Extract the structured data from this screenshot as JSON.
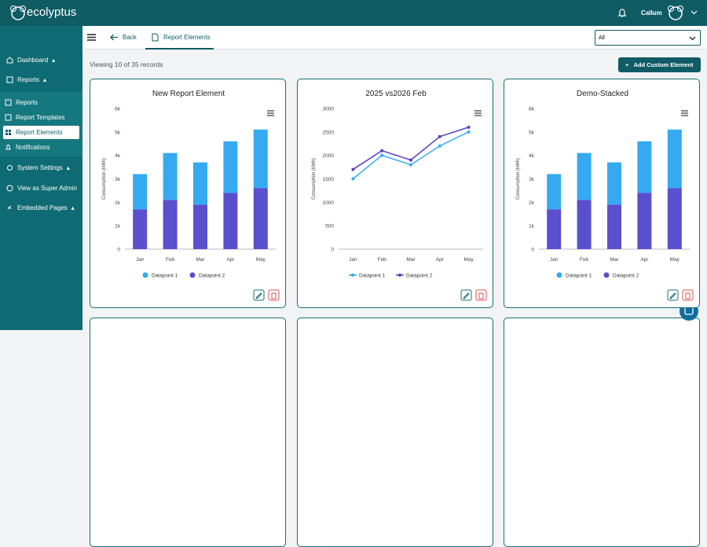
{
  "app": {
    "brand": "ecolyptus",
    "user": "Callum"
  },
  "nav": {
    "items": [
      "Dashboard",
      "Reports"
    ],
    "sub_items": [
      "Reports",
      "Report Templates",
      "Report Elements",
      "Notifications"
    ],
    "more_items": [
      "System Settings",
      "View as Super Admin",
      "Embedded Pages"
    ]
  },
  "toolbar": {
    "back": "Back",
    "tab": "Report Elements",
    "filter": "All"
  },
  "summary": {
    "records": "Viewing 10 of 35 records",
    "add_button": "Add Custom Element"
  },
  "chart_data": [
    {
      "type": "bar",
      "stacked": true,
      "title": "New Report Element",
      "ylabel": "Consumption (kWh)",
      "categories": [
        "Jan",
        "Feb",
        "Mar",
        "Apr",
        "May"
      ],
      "series": [
        {
          "name": "Datapoint 1",
          "color": "#35aaf0",
          "values": [
            1500,
            2000,
            1800,
            2200,
            2500
          ]
        },
        {
          "name": "Datapoint 2",
          "color": "#5a4fcf",
          "values": [
            1700,
            2100,
            1900,
            2400,
            2600
          ]
        }
      ],
      "ylim": [
        0,
        6000
      ],
      "yticks": [
        0,
        {
          "value": 1000,
          "label": "1k"
        },
        {
          "value": 2000,
          "label": "2k"
        },
        {
          "value": 3000,
          "label": "3k"
        },
        {
          "value": 4000,
          "label": "4k"
        },
        {
          "value": 5000,
          "label": "5k"
        },
        {
          "value": 6000,
          "label": "6k"
        }
      ],
      "legend": "bottom"
    },
    {
      "type": "line",
      "title": "2025 vs2026 Feb",
      "ylabel": "Consumption (kWh)",
      "categories": [
        "Jan",
        "Feb",
        "Mar",
        "Apr",
        "May"
      ],
      "series": [
        {
          "name": "Datapoint 1",
          "color": "#35aaf0",
          "values": [
            1500,
            2000,
            1800,
            2200,
            2500
          ]
        },
        {
          "name": "Datapoint 2",
          "color": "#5a3fc0",
          "values": [
            1700,
            2100,
            1900,
            2400,
            2600
          ]
        }
      ],
      "ylim": [
        0,
        3000
      ],
      "yticks": [
        0,
        500,
        1000,
        1500,
        2000,
        2500,
        3000
      ],
      "legend": "bottom"
    },
    {
      "type": "bar",
      "stacked": true,
      "title": "Demo-Stacked",
      "ylabel": "Consumption (kWh)",
      "categories": [
        "Jan",
        "Feb",
        "Mar",
        "Apr",
        "May"
      ],
      "series": [
        {
          "name": "Datapoint 1",
          "color": "#35aaf0",
          "values": [
            1500,
            2000,
            1800,
            2200,
            2500
          ]
        },
        {
          "name": "Datapoint 2",
          "color": "#5a4fcf",
          "values": [
            1700,
            2100,
            1900,
            2400,
            2600
          ]
        }
      ],
      "ylim": [
        0,
        6000
      ],
      "yticks": [
        0,
        {
          "value": 1000,
          "label": "1k"
        },
        {
          "value": 2000,
          "label": "2k"
        },
        {
          "value": 3000,
          "label": "3k"
        },
        {
          "value": 4000,
          "label": "4k"
        },
        {
          "value": 5000,
          "label": "5k"
        },
        {
          "value": 6000,
          "label": "6k"
        }
      ],
      "legend": "bottom"
    }
  ]
}
